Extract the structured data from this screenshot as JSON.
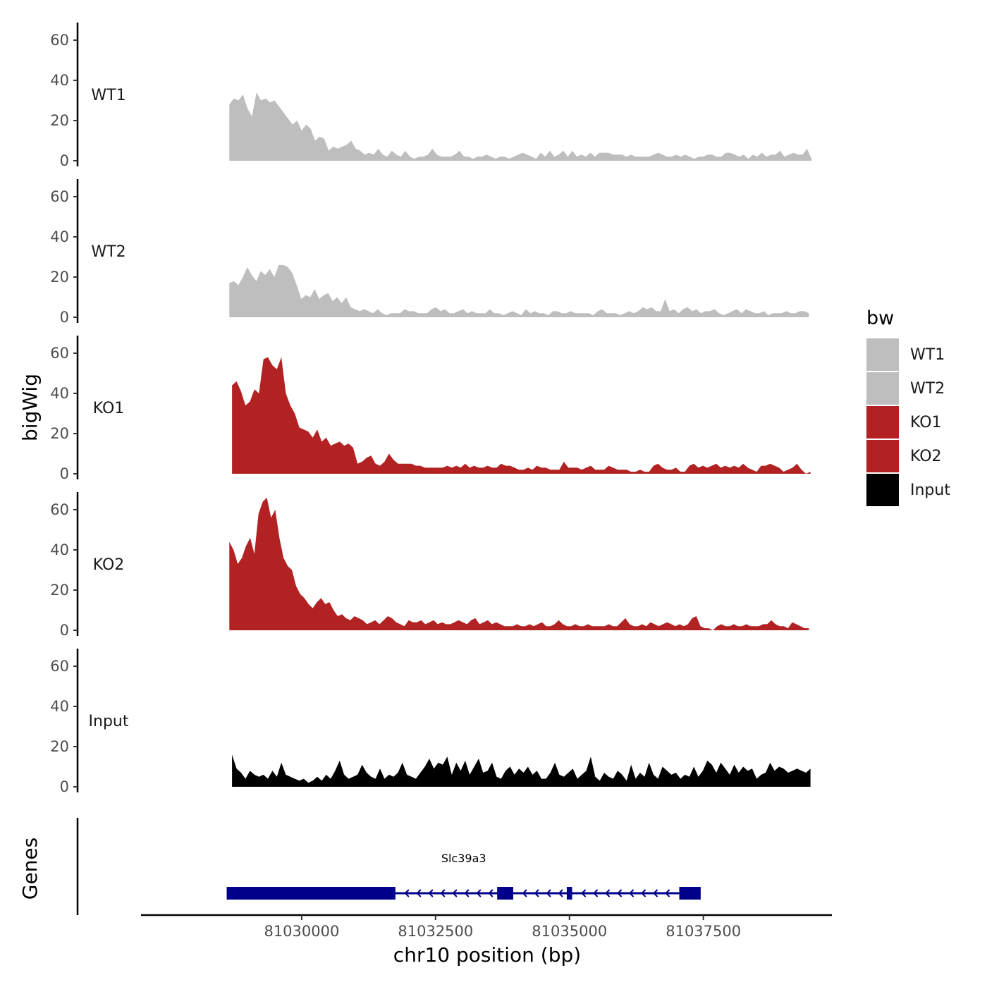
{
  "chart_data": {
    "type": "area",
    "chromosome": "chr10",
    "xlabel": "chr10 position (bp)",
    "ylabel": "bigWig",
    "genes_label": "Genes",
    "xlim": [
      81027000,
      81039900
    ],
    "ylim": [
      0,
      67
    ],
    "yticks": [
      0,
      20,
      40,
      60
    ],
    "xticks": [
      81030000,
      81032500,
      81035000,
      81037500
    ],
    "xtick_labels": [
      "81030000",
      "81032500",
      "81035000",
      "81037500"
    ],
    "legend": {
      "title": "bw",
      "entries": [
        {
          "label": "WT1",
          "color": "#bebebe"
        },
        {
          "label": "WT2",
          "color": "#bebebe"
        },
        {
          "label": "KO1",
          "color": "#b22222"
        },
        {
          "label": "KO2",
          "color": "#b22222"
        },
        {
          "label": "Input",
          "color": "#000000"
        }
      ]
    },
    "series": [
      {
        "name": "WT1",
        "color": "#bebebe",
        "x_start": 81028650,
        "x_end": 81039520,
        "values": [
          28,
          31,
          30,
          33,
          26,
          22,
          34,
          30,
          31,
          29,
          30,
          27,
          24,
          21,
          18,
          20,
          15,
          18,
          16,
          10,
          12,
          11,
          5,
          7,
          6,
          7,
          8,
          10,
          6,
          5,
          3,
          4,
          3,
          6,
          3,
          2,
          5,
          3,
          2,
          5,
          2,
          1,
          2,
          2,
          3,
          6,
          3,
          2,
          2,
          2,
          3,
          5,
          2,
          2,
          1,
          2,
          2,
          3,
          2,
          1,
          2,
          2,
          1,
          2,
          3,
          4,
          3,
          2,
          1,
          4,
          2,
          5,
          2,
          3,
          5,
          2,
          5,
          2,
          3,
          2,
          4,
          2,
          4,
          4,
          4,
          3,
          3,
          3,
          2,
          3,
          2,
          2,
          2,
          2,
          3,
          4,
          3,
          2,
          2,
          3,
          2,
          3,
          2,
          1,
          2,
          2,
          3,
          3,
          2,
          2,
          4,
          4,
          3,
          2,
          3,
          1,
          3,
          2,
          4,
          2,
          3,
          3,
          5,
          2,
          3,
          4,
          3,
          3,
          6,
          1
        ]
      },
      {
        "name": "WT2",
        "color": "#bebebe",
        "x_start": 81028650,
        "x_end": 81039470,
        "values": [
          17,
          18,
          16,
          20,
          25,
          21,
          18,
          23,
          21,
          24,
          20,
          26,
          26,
          25,
          22,
          16,
          9,
          11,
          10,
          14,
          9,
          11,
          12,
          8,
          10,
          7,
          10,
          5,
          4,
          3,
          4,
          3,
          2,
          4,
          2,
          1,
          2,
          2,
          2,
          4,
          3,
          3,
          2,
          2,
          2,
          4,
          5,
          3,
          4,
          2,
          2,
          3,
          4,
          2,
          3,
          2,
          2,
          2,
          4,
          2,
          2,
          1,
          2,
          3,
          2,
          1,
          4,
          2,
          3,
          2,
          2,
          1,
          3,
          3,
          2,
          2,
          3,
          2,
          2,
          2,
          2,
          1,
          3,
          4,
          2,
          2,
          2,
          1,
          2,
          3,
          2,
          3,
          5,
          4,
          5,
          3,
          3,
          9,
          3,
          4,
          2,
          4,
          5,
          3,
          4,
          2,
          3,
          3,
          4,
          2,
          1,
          2,
          3,
          4,
          2,
          4,
          3,
          2,
          2,
          3,
          1,
          2,
          2,
          2,
          3,
          2,
          2,
          3,
          3,
          2
        ]
      },
      {
        "name": "KO1",
        "color": "#b22222",
        "x_start": 81028700,
        "x_end": 81039500,
        "values": [
          44,
          46,
          41,
          34,
          36,
          42,
          40,
          57,
          58,
          54,
          52,
          58,
          40,
          34,
          30,
          23,
          22,
          21,
          18,
          22,
          16,
          18,
          14,
          15,
          16,
          14,
          15,
          13,
          5,
          6,
          8,
          9,
          5,
          4,
          6,
          10,
          7,
          5,
          5,
          5,
          5,
          4,
          4,
          3,
          3,
          3,
          3,
          3,
          4,
          3,
          4,
          3,
          5,
          3,
          4,
          3,
          3,
          4,
          3,
          3,
          5,
          4,
          4,
          3,
          2,
          2,
          3,
          2,
          4,
          3,
          3,
          2,
          2,
          2,
          6,
          3,
          3,
          3,
          2,
          3,
          4,
          2,
          2,
          2,
          4,
          3,
          2,
          2,
          2,
          1,
          1,
          2,
          1,
          1,
          4,
          5,
          3,
          2,
          2,
          3,
          1,
          1,
          4,
          5,
          3,
          4,
          3,
          4,
          5,
          3,
          4,
          3,
          4,
          3,
          5,
          3,
          2,
          1,
          4,
          4,
          5,
          4,
          3,
          1,
          2,
          3,
          5,
          2,
          0,
          1
        ]
      },
      {
        "name": "KO2",
        "color": "#b22222",
        "x_start": 81028650,
        "x_end": 81039470,
        "values": [
          44,
          40,
          33,
          36,
          42,
          46,
          38,
          58,
          64,
          66,
          56,
          60,
          46,
          36,
          32,
          30,
          22,
          18,
          16,
          13,
          11,
          14,
          16,
          13,
          14,
          10,
          7,
          8,
          6,
          5,
          7,
          6,
          5,
          3,
          4,
          5,
          3,
          5,
          7,
          6,
          4,
          3,
          2,
          5,
          4,
          4,
          5,
          3,
          4,
          5,
          3,
          4,
          3,
          3,
          4,
          5,
          4,
          3,
          5,
          6,
          3,
          4,
          5,
          3,
          4,
          3,
          2,
          2,
          2,
          3,
          2,
          2,
          3,
          2,
          3,
          4,
          2,
          2,
          3,
          5,
          3,
          2,
          2,
          3,
          2,
          2,
          3,
          2,
          2,
          2,
          2,
          3,
          2,
          2,
          4,
          6,
          3,
          2,
          2,
          3,
          2,
          4,
          3,
          2,
          3,
          4,
          3,
          2,
          3,
          2,
          3,
          6,
          7,
          2,
          1,
          1,
          0,
          2,
          3,
          2,
          2,
          3,
          2,
          2,
          3,
          2,
          2,
          2,
          3,
          3,
          5,
          3,
          2,
          2,
          1,
          4,
          3,
          2,
          1,
          1
        ]
      },
      {
        "name": "Input",
        "color": "#000000",
        "x_start": 81028700,
        "x_end": 81039500,
        "values": [
          16,
          9,
          7,
          4,
          8,
          6,
          5,
          6,
          4,
          8,
          5,
          12,
          6,
          5,
          4,
          3,
          4,
          2,
          3,
          5,
          3,
          6,
          4,
          8,
          13,
          6,
          4,
          5,
          6,
          11,
          7,
          5,
          4,
          9,
          4,
          6,
          5,
          7,
          12,
          6,
          5,
          4,
          7,
          10,
          14,
          9,
          12,
          11,
          15,
          6,
          12,
          8,
          13,
          6,
          10,
          14,
          7,
          8,
          12,
          5,
          4,
          8,
          10,
          6,
          9,
          7,
          10,
          6,
          8,
          4,
          4,
          7,
          12,
          6,
          5,
          7,
          9,
          4,
          6,
          8,
          15,
          5,
          3,
          7,
          5,
          4,
          8,
          6,
          3,
          11,
          4,
          7,
          5,
          12,
          6,
          4,
          10,
          8,
          6,
          7,
          4,
          6,
          5,
          10,
          5,
          8,
          13,
          11,
          7,
          12,
          9,
          6,
          11,
          7,
          10,
          8,
          9,
          4,
          6,
          7,
          12,
          8,
          10,
          9,
          7,
          8,
          9,
          8,
          7,
          9
        ]
      }
    ],
    "gene": {
      "name": "Slc39a3",
      "strand": "-",
      "color": "#00008b",
      "tx_start": 81028600,
      "tx_end": 81037450,
      "exons": [
        {
          "start": 81028600,
          "end": 81031750
        },
        {
          "start": 81033650,
          "end": 81033950
        },
        {
          "start": 81034950,
          "end": 81035050
        },
        {
          "start": 81037050,
          "end": 81037450
        }
      ]
    }
  }
}
